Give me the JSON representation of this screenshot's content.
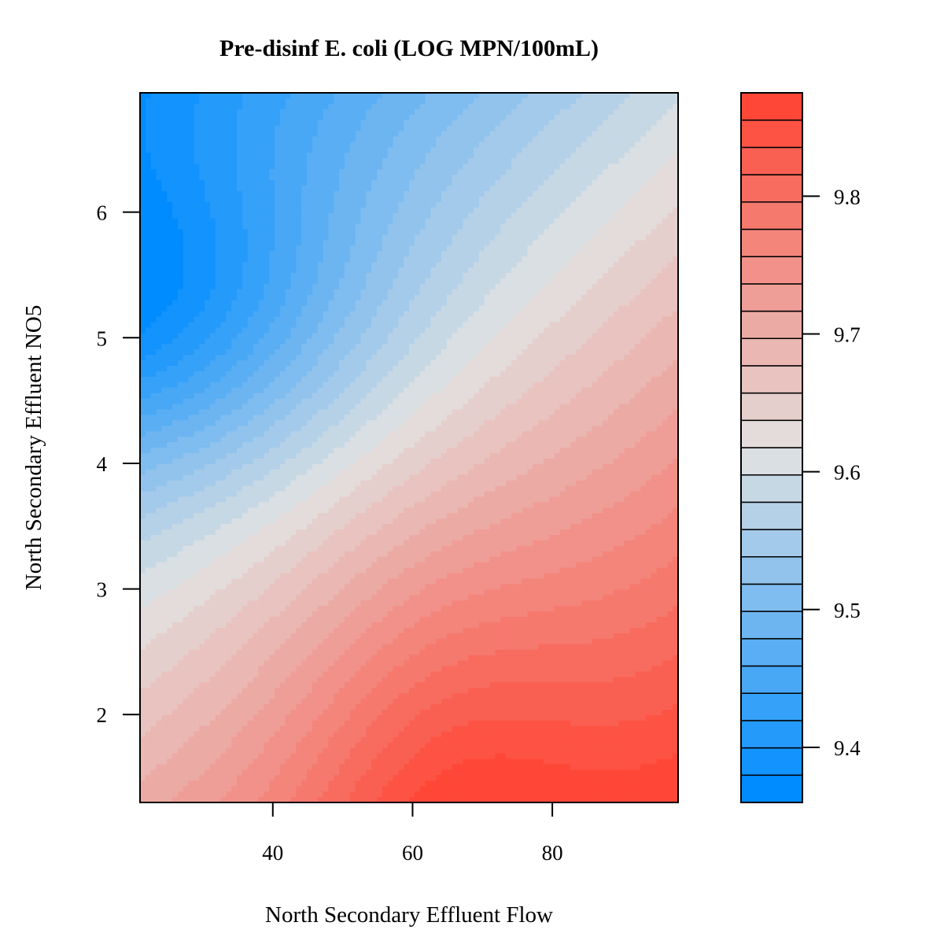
{
  "chart_data": {
    "type": "heatmap",
    "subtype": "filled-contour",
    "title": "Pre-disinf E. coli (LOG MPN/100mL)",
    "xlabel": "North Secondary Effluent Flow",
    "ylabel": "North Secondary Effluent NO5",
    "xlim": [
      21,
      98
    ],
    "ylim": [
      1.3,
      6.95
    ],
    "x_ticks": [
      40,
      60,
      80
    ],
    "x_tick_labels": [
      "40",
      "60",
      "80"
    ],
    "y_ticks": [
      2,
      3,
      4,
      5,
      6
    ],
    "y_tick_labels": [
      "2",
      "3",
      "4",
      "5",
      "6"
    ],
    "z_range": [
      9.36,
      9.875
    ],
    "z_ticks": [
      9.4,
      9.5,
      9.6,
      9.7,
      9.8
    ],
    "z_tick_labels": [
      "9.4",
      "9.5",
      "9.6",
      "9.7",
      "9.8"
    ],
    "n_levels": 26,
    "z_min_at": {
      "x": 21,
      "y": 5.2
    },
    "z_max_at": {
      "x": 64,
      "y": 1.45
    },
    "colors": {
      "low": "#008CFF",
      "mid": "#E2E2E2",
      "high": "#FF4737"
    },
    "grid": false,
    "legend": "right"
  }
}
